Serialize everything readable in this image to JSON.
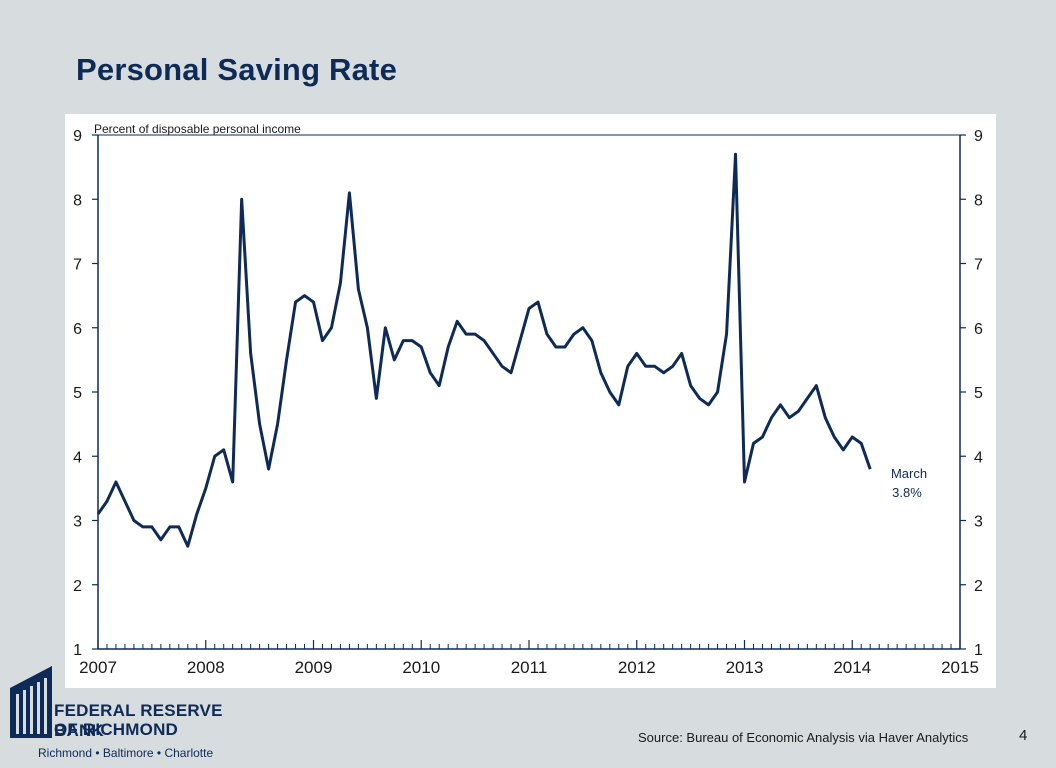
{
  "slide": {
    "title": "Personal Saving Rate",
    "source": "Source: Bureau of Economic Analysis via Haver Analytics",
    "page_number": "4"
  },
  "logo": {
    "line1": "FEDERAL RESERVE BANK",
    "line2": "OF RICHMOND",
    "cities": "Richmond • Baltimore • Charlotte"
  },
  "colors": {
    "background": "#d7dcdf",
    "title": "#0e2b57",
    "line": "#0e2b57",
    "axis": "#0e2b57"
  },
  "chart_data": {
    "type": "line",
    "title": "",
    "ylabel": "Percent of disposable personal income",
    "xlabel": "",
    "ylim": [
      1,
      9
    ],
    "xlim": [
      2007,
      2015
    ],
    "y_ticks": [
      "1",
      "2",
      "3",
      "4",
      "5",
      "6",
      "7",
      "8",
      "9"
    ],
    "x_ticks": [
      "2007",
      "2008",
      "2009",
      "2010",
      "2011",
      "2012",
      "2013",
      "2014",
      "2015"
    ],
    "grid": false,
    "y_axis_both_sides": true,
    "annotation": {
      "lines": [
        "March",
        "3.8%"
      ],
      "x": "2014-03",
      "y": 3.8
    },
    "series": [
      {
        "start": "2007-01",
        "frequency": "monthly",
        "values": [
          3.1,
          3.3,
          3.6,
          3.3,
          3.0,
          2.9,
          2.9,
          2.7,
          2.9,
          2.9,
          2.6,
          3.1,
          3.5,
          4.0,
          4.1,
          3.6,
          8.0,
          5.6,
          4.5,
          3.8,
          4.5,
          5.5,
          6.4,
          6.5,
          6.4,
          5.8,
          6.0,
          6.7,
          8.1,
          6.6,
          6.0,
          4.9,
          6.0,
          5.5,
          5.8,
          5.8,
          5.7,
          5.3,
          5.1,
          5.7,
          6.1,
          5.9,
          5.9,
          5.8,
          5.6,
          5.4,
          5.3,
          5.8,
          6.3,
          6.4,
          5.9,
          5.7,
          5.7,
          5.9,
          6.0,
          5.8,
          5.3,
          5.0,
          4.8,
          5.4,
          5.6,
          5.4,
          5.4,
          5.3,
          5.4,
          5.6,
          5.1,
          4.9,
          4.8,
          5.0,
          5.9,
          8.7,
          3.6,
          4.2,
          4.3,
          4.6,
          4.8,
          4.6,
          4.7,
          4.9,
          5.1,
          4.6,
          4.3,
          4.1,
          4.3,
          4.2,
          3.8
        ]
      }
    ]
  }
}
